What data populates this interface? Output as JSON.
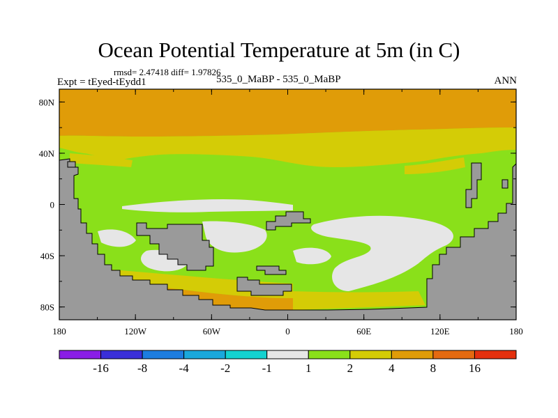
{
  "title": "Ocean Potential Temperature at 5m (in C)",
  "stats": "rmsd= 2.47418 diff= 1.97826",
  "expt": "Expt = tEyed-tEydd1",
  "case": "535_0_MaBP - 535_0_MaBP",
  "season": "ANN",
  "chart_data": {
    "type": "heatmap",
    "title": "Ocean Potential Temperature at 5m (in C)",
    "subtitle": "535_0_MaBP - 535_0_MaBP",
    "xlabel": "",
    "ylabel": "",
    "x_ticks": [
      "180",
      "120W",
      "60W",
      "0",
      "60E",
      "120E",
      "180"
    ],
    "y_ticks": [
      "80N",
      "40N",
      "0",
      "40S",
      "80S"
    ],
    "xlim": [
      -180,
      180
    ],
    "ylim": [
      -90,
      90
    ],
    "colorbar": {
      "levels": [
        "-16",
        "-8",
        "-4",
        "-2",
        "-1",
        "1",
        "2",
        "4",
        "8",
        "16"
      ],
      "colors": [
        "#8a1ee6",
        "#3a2fd8",
        "#1d7de0",
        "#1aa8dc",
        "#14d2d0",
        "#e6e6e6",
        "#8ae01a",
        "#d4cc06",
        "#e09c08",
        "#e46a10",
        "#e4300e"
      ]
    },
    "colors": {
      "land": "#9a9a9a",
      "warm": "#e09c08",
      "mid": "#d4cc06",
      "low": "#8ae01a",
      "neutral": "#e6e6e6"
    }
  }
}
